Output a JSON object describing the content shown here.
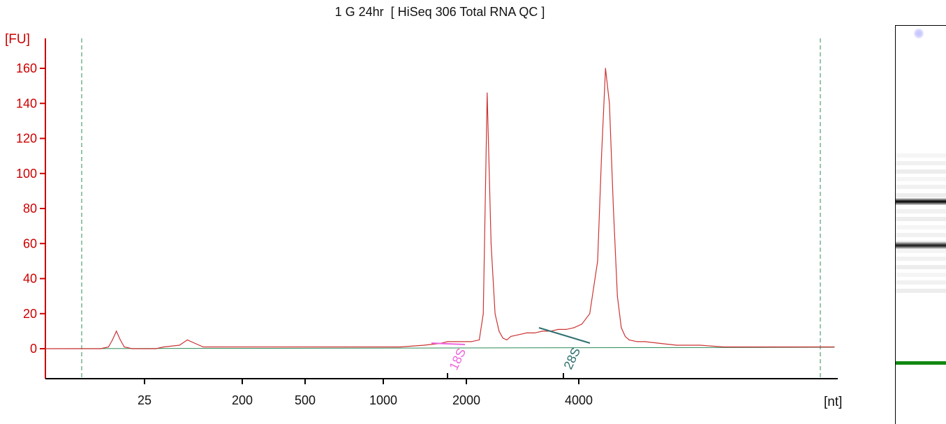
{
  "chart_data": {
    "type": "line",
    "title": "1 G 24hr  [ HiSeq 306 Total RNA QC ]",
    "ylabel": "[FU]",
    "xlabel": "[nt]",
    "ylim": [
      -17,
      180
    ],
    "yticks": [
      0,
      20,
      40,
      60,
      80,
      100,
      120,
      140,
      160
    ],
    "xticks": [
      "25",
      "200",
      "500",
      "1000",
      "2000",
      "4000"
    ],
    "grid": false,
    "colors": {
      "axis_y": "#cc0000",
      "trace": "#cc3333",
      "baseline": "#2e8b57",
      "marker_lines": "#2e8b57",
      "peak_18s": "#ee66dd",
      "peak_28s": "#2f6f6f",
      "lower_marker_band": "#118811"
    },
    "series": [
      {
        "values_note_x_unit": "position along run, 0-100 (log-like nt scale)",
        "x": [
          0,
          3,
          5,
          7,
          8,
          8.5,
          9,
          9.5,
          10,
          11,
          14,
          15,
          17,
          18,
          19,
          20,
          22,
          25,
          28,
          32,
          38,
          45,
          48,
          50,
          51,
          52,
          53,
          54,
          55,
          55.5,
          56,
          56.5,
          57,
          57.5,
          58,
          58.5,
          59,
          60,
          61,
          62,
          63,
          64,
          65,
          66,
          67,
          68,
          69,
          70,
          70.5,
          71,
          71.5,
          72,
          72.5,
          73,
          73.5,
          74,
          75,
          76,
          78,
          80,
          83,
          86,
          90,
          95,
          100
        ],
        "y": [
          0,
          0,
          0,
          0,
          1,
          5,
          10,
          5,
          1,
          0,
          0,
          1,
          2,
          5,
          3,
          1,
          1,
          1,
          1,
          1,
          1,
          1,
          2,
          3,
          4,
          4,
          4,
          4,
          5,
          20,
          146,
          60,
          20,
          10,
          6,
          5,
          7,
          8,
          9,
          9,
          10,
          10,
          11,
          11,
          12,
          14,
          20,
          50,
          110,
          160,
          140,
          80,
          30,
          12,
          7,
          5,
          4,
          4,
          3,
          2,
          2,
          1,
          1,
          1,
          1
        ]
      }
    ],
    "annotations": [
      {
        "label": "18S",
        "x_label": "2000"
      },
      {
        "label": "28S",
        "x_label": "4000"
      }
    ]
  },
  "gel": {
    "bands": [
      {
        "level": 0.44,
        "strength": 1.0,
        "color": "#111111"
      },
      {
        "level": 0.55,
        "strength": 0.85,
        "color": "#222222"
      },
      {
        "level": 0.85,
        "strength": 1.0,
        "color": "#118811"
      }
    ],
    "top_spot": "flower-icon"
  }
}
